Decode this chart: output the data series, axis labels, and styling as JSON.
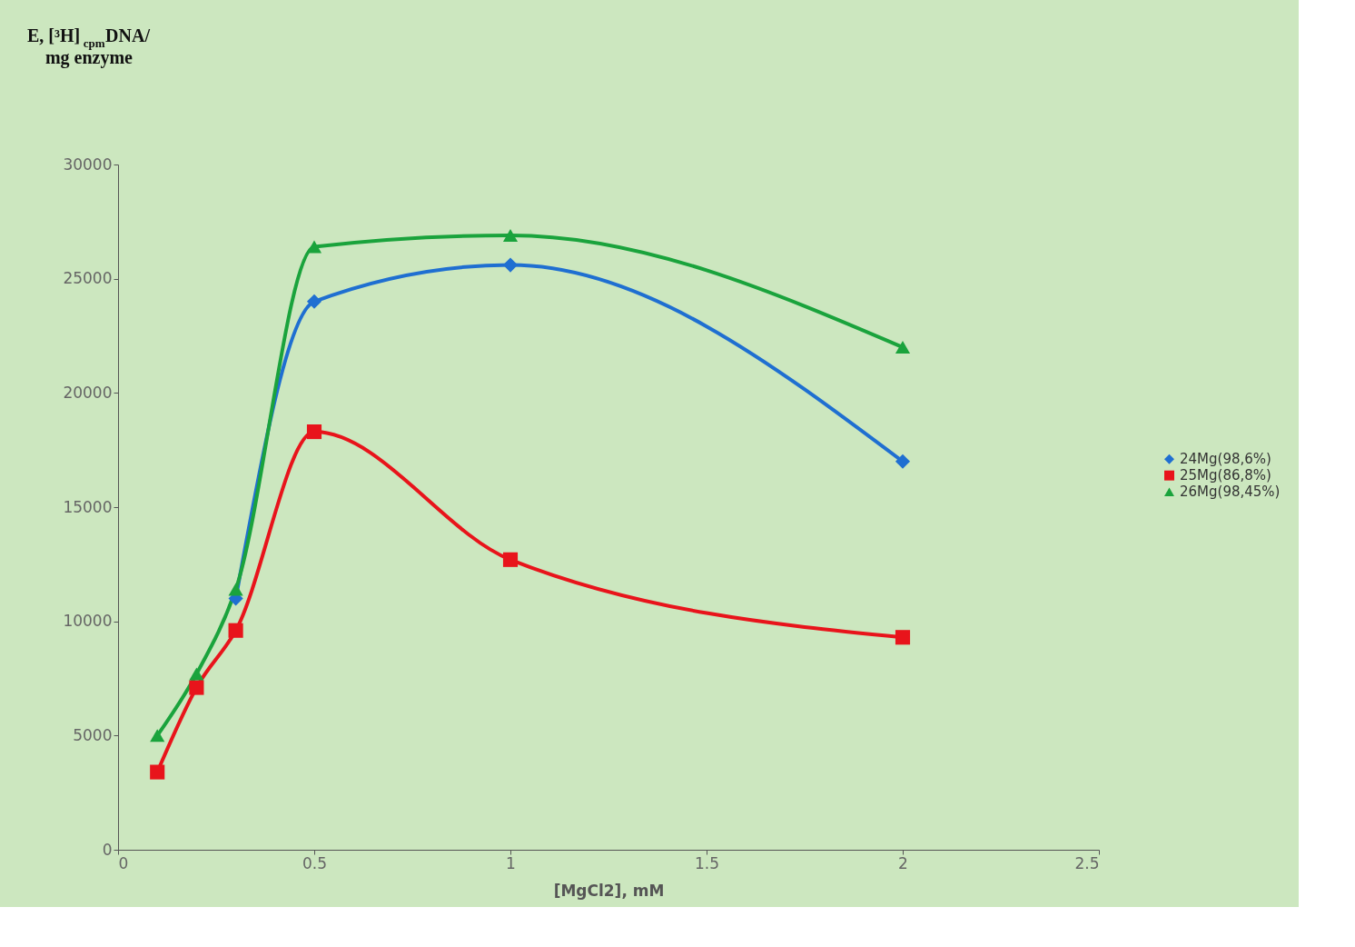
{
  "chart_data": {
    "type": "line",
    "xlabel": "[MgCl2], mM",
    "ylabel": "E, [³H]$_{cpm}$DNA/ mg enzyme",
    "x": [
      0.1,
      0.2,
      0.3,
      0.5,
      1,
      2
    ],
    "series": [
      {
        "name": "24Mg(98,6%)",
        "color": "#1f6fd1",
        "marker": "diamond",
        "values": [
          null,
          null,
          11000,
          24000,
          25600,
          17000
        ]
      },
      {
        "name": "25Mg(86,8%)",
        "color": "#e8141b",
        "marker": "square",
        "values": [
          3400,
          7100,
          9600,
          18300,
          12700,
          9300
        ]
      },
      {
        "name": "26Mg(98,45%)",
        "color": "#1aa33c",
        "marker": "triangle",
        "values": [
          5000,
          7700,
          11400,
          26400,
          26900,
          22000
        ]
      }
    ],
    "xlim": [
      0,
      2.5
    ],
    "xticks": [
      0,
      0.5,
      1,
      1.5,
      2,
      2.5
    ],
    "ylim": [
      0,
      30000
    ],
    "yticks": [
      0,
      5000,
      10000,
      15000,
      20000,
      25000,
      30000
    ],
    "grid": false,
    "legend": "right",
    "line_style": "solid"
  }
}
